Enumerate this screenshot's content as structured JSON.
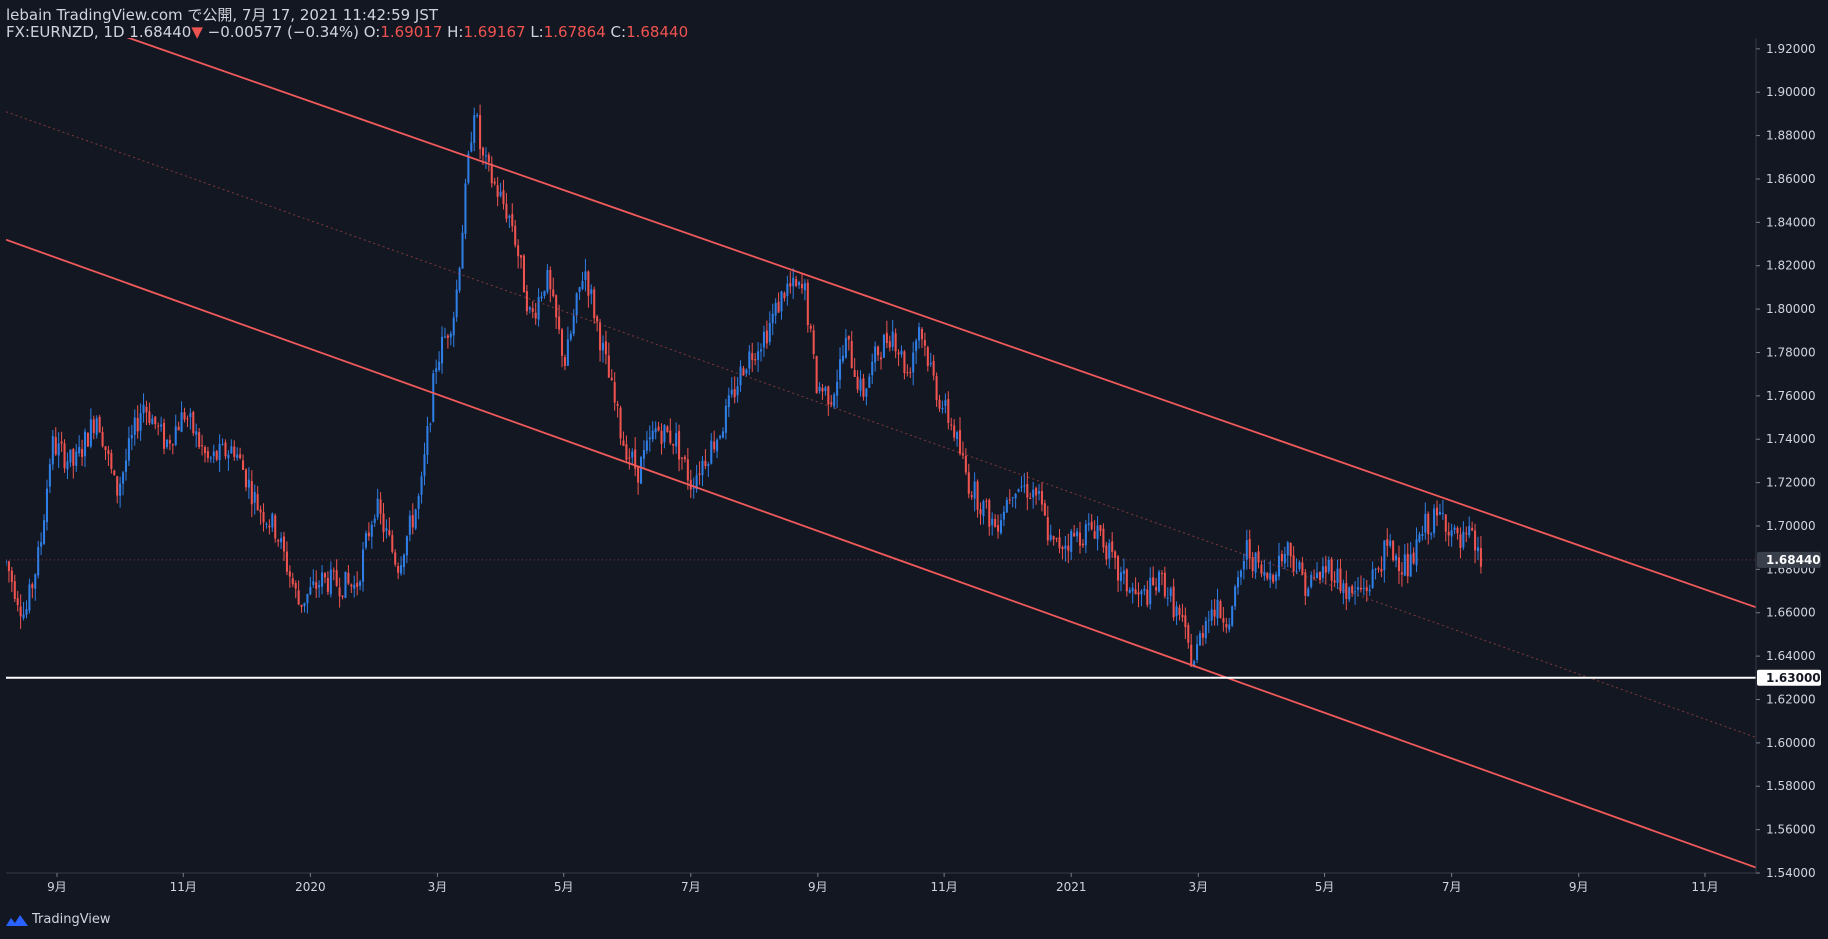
{
  "header": {
    "line1": "lebain TradingView.com で公開, 7月 17, 2021 11:42:59 JST",
    "symbol": "FX:EURNZD, 1D",
    "last": "1.68440",
    "arrow": "▼",
    "change": "−0.00577 (−0.34%)",
    "o_label": "O:",
    "o_value": "1.69017",
    "h_label": "H:",
    "h_value": "1.69167",
    "l_label": "L:",
    "l_value": "1.67864",
    "c_label": "C:",
    "c_value": "1.68440"
  },
  "footer": {
    "brand": "TradingView"
  },
  "chart_data": {
    "type": "candlestick",
    "symbol": "FX:EURNZD",
    "interval": "1D",
    "ylim": [
      1.54,
      1.925
    ],
    "x_range": [
      2019.6,
      2021.9
    ],
    "y_ticks": [
      "1.54000",
      "1.56000",
      "1.58000",
      "1.60000",
      "1.62000",
      "1.64000",
      "1.66000",
      "1.68000",
      "1.70000",
      "1.72000",
      "1.74000",
      "1.76000",
      "1.78000",
      "1.80000",
      "1.82000",
      "1.84000",
      "1.86000",
      "1.88000",
      "1.90000",
      "1.92000"
    ],
    "x_ticks": [
      {
        "label": "9月",
        "t": 2019.667
      },
      {
        "label": "11月",
        "t": 2019.833
      },
      {
        "label": "2020",
        "t": 2020.0
      },
      {
        "label": "3月",
        "t": 2020.167
      },
      {
        "label": "5月",
        "t": 2020.333
      },
      {
        "label": "7月",
        "t": 2020.5
      },
      {
        "label": "9月",
        "t": 2020.667
      },
      {
        "label": "11月",
        "t": 2020.833
      },
      {
        "label": "2021",
        "t": 2021.0
      },
      {
        "label": "3月",
        "t": 2021.167
      },
      {
        "label": "5月",
        "t": 2021.333
      },
      {
        "label": "7月",
        "t": 2021.5
      },
      {
        "label": "9月",
        "t": 2021.667
      },
      {
        "label": "11月",
        "t": 2021.833
      }
    ],
    "price_path": [
      [
        2019.6,
        1.683
      ],
      [
        2019.625,
        1.658
      ],
      [
        2019.645,
        1.69
      ],
      [
        2019.66,
        1.738
      ],
      [
        2019.69,
        1.728
      ],
      [
        2019.72,
        1.752
      ],
      [
        2019.745,
        1.715
      ],
      [
        2019.78,
        1.757
      ],
      [
        2019.81,
        1.738
      ],
      [
        2019.835,
        1.752
      ],
      [
        2019.865,
        1.73
      ],
      [
        2019.9,
        1.736
      ],
      [
        2019.93,
        1.71
      ],
      [
        2019.955,
        1.698
      ],
      [
        2019.985,
        1.664
      ],
      [
        2020.015,
        1.675
      ],
      [
        2020.06,
        1.672
      ],
      [
        2020.085,
        1.71
      ],
      [
        2020.115,
        1.682
      ],
      [
        2020.145,
        1.715
      ],
      [
        2020.165,
        1.775
      ],
      [
        2020.19,
        1.8
      ],
      [
        2020.215,
        1.895
      ],
      [
        2020.225,
        1.87
      ],
      [
        2020.245,
        1.855
      ],
      [
        2020.265,
        1.84
      ],
      [
        2020.29,
        1.795
      ],
      [
        2020.31,
        1.815
      ],
      [
        2020.335,
        1.775
      ],
      [
        2020.36,
        1.82
      ],
      [
        2020.385,
        1.78
      ],
      [
        2020.41,
        1.74
      ],
      [
        2020.43,
        1.725
      ],
      [
        2020.455,
        1.745
      ],
      [
        2020.48,
        1.74
      ],
      [
        2020.5,
        1.72
      ],
      [
        2020.54,
        1.745
      ],
      [
        2020.57,
        1.775
      ],
      [
        2020.6,
        1.79
      ],
      [
        2020.625,
        1.81
      ],
      [
        2020.65,
        1.808
      ],
      [
        2020.665,
        1.765
      ],
      [
        2020.685,
        1.76
      ],
      [
        2020.705,
        1.785
      ],
      [
        2020.725,
        1.76
      ],
      [
        2020.745,
        1.78
      ],
      [
        2020.765,
        1.79
      ],
      [
        2020.785,
        1.77
      ],
      [
        2020.8,
        1.793
      ],
      [
        2020.825,
        1.76
      ],
      [
        2020.845,
        1.745
      ],
      [
        2020.865,
        1.72
      ],
      [
        2020.9,
        1.7
      ],
      [
        2020.925,
        1.72
      ],
      [
        2020.955,
        1.715
      ],
      [
        2020.975,
        1.69
      ],
      [
        2021.005,
        1.695
      ],
      [
        2021.035,
        1.7
      ],
      [
        2021.06,
        1.678
      ],
      [
        2021.09,
        1.666
      ],
      [
        2021.12,
        1.675
      ],
      [
        2021.145,
        1.655
      ],
      [
        2021.16,
        1.636
      ],
      [
        2021.18,
        1.662
      ],
      [
        2021.21,
        1.658
      ],
      [
        2021.23,
        1.69
      ],
      [
        2021.255,
        1.675
      ],
      [
        2021.285,
        1.69
      ],
      [
        2021.31,
        1.672
      ],
      [
        2021.34,
        1.682
      ],
      [
        2021.365,
        1.668
      ],
      [
        2021.39,
        1.672
      ],
      [
        2021.415,
        1.69
      ],
      [
        2021.445,
        1.68
      ],
      [
        2021.465,
        1.7
      ],
      [
        2021.49,
        1.705
      ],
      [
        2021.51,
        1.69
      ],
      [
        2021.525,
        1.695
      ],
      [
        2021.54,
        1.682
      ]
    ],
    "drawings": [
      {
        "kind": "trendline",
        "name": "channel-upper",
        "color": "#f05a5a",
        "t1": 2019.66,
        "p1": 1.9375,
        "t2": 2021.9,
        "p2": 1.6625
      },
      {
        "kind": "trendline",
        "name": "channel-lower",
        "color": "#f05a5a",
        "t1": 2019.6,
        "p1": 1.832,
        "t2": 2021.9,
        "p2": 1.5425
      },
      {
        "kind": "trendline",
        "name": "channel-mid",
        "color": "#b04848",
        "t1": 2019.6,
        "p1": 1.891,
        "t2": 2021.9,
        "p2": 1.6025
      },
      {
        "kind": "hline",
        "name": "support",
        "color": "#ffffff",
        "price": 1.63
      }
    ],
    "price_labels": [
      {
        "name": "last-price",
        "value": "1.68440",
        "price": 1.6844,
        "bg": "#3a3f4c",
        "fg": "#ffffff"
      },
      {
        "name": "support-price",
        "value": "1.63000",
        "price": 1.63,
        "bg": "#ffffff",
        "fg": "#131722"
      }
    ],
    "colors": {
      "up": "#2f7ee6",
      "down": "#ef5350",
      "background": "#131722",
      "axis_text": "#d1d4dc"
    }
  }
}
